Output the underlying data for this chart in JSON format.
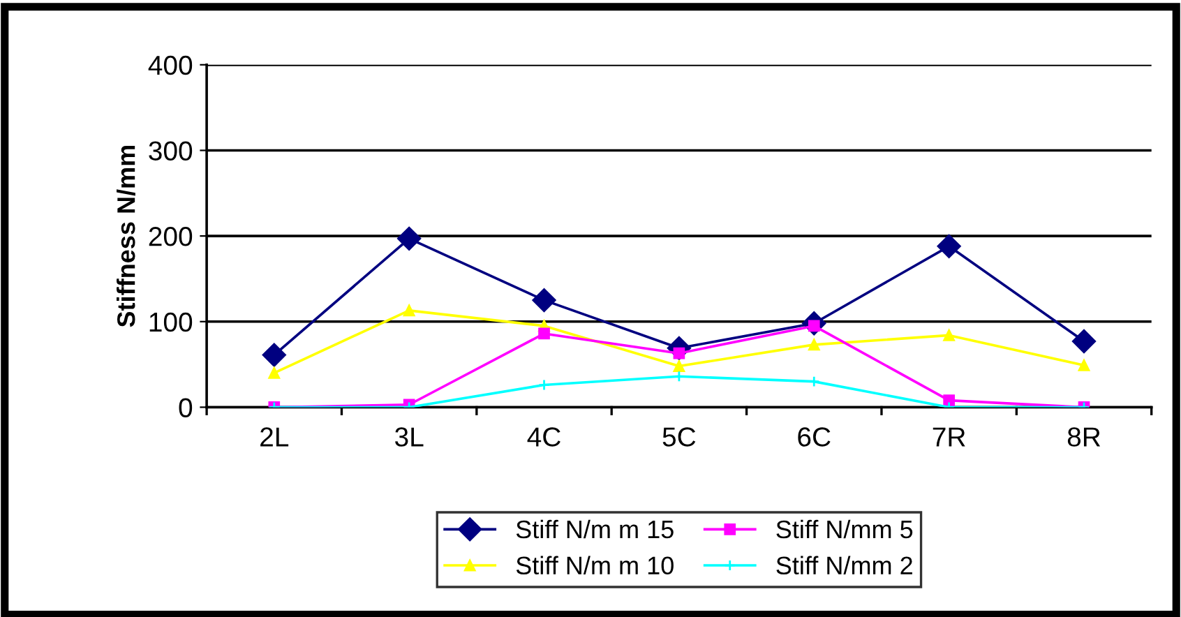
{
  "chart_data": {
    "type": "line",
    "ylabel": "Stiffness N/mm",
    "categories": [
      "2L",
      "3L",
      "4C",
      "5C",
      "6C",
      "7R",
      "8R"
    ],
    "series": [
      {
        "name": "Stiff N/m m 15",
        "color": "#000080",
        "marker": "diamond",
        "values": [
          61,
          197,
          125,
          69,
          98,
          188,
          77
        ]
      },
      {
        "name": "Stiff N/m m 10",
        "color": "#ffff00",
        "marker": "triangle",
        "values": [
          40,
          113,
          95,
          48,
          73,
          84,
          49
        ]
      },
      {
        "name": "Stiff N/mm 5",
        "color": "#ff00ff",
        "marker": "square",
        "values": [
          0,
          3,
          86,
          63,
          95,
          8,
          0
        ]
      },
      {
        "name": "Stiff N/mm 2",
        "color": "#00ffff",
        "marker": "cross",
        "values": [
          0,
          0,
          26,
          36,
          30,
          0,
          0
        ]
      }
    ],
    "ylim": [
      0,
      400
    ],
    "yticks": [
      0,
      100,
      200,
      300,
      400
    ],
    "grid": "y",
    "legend": "bottom",
    "line_style": "solid"
  }
}
